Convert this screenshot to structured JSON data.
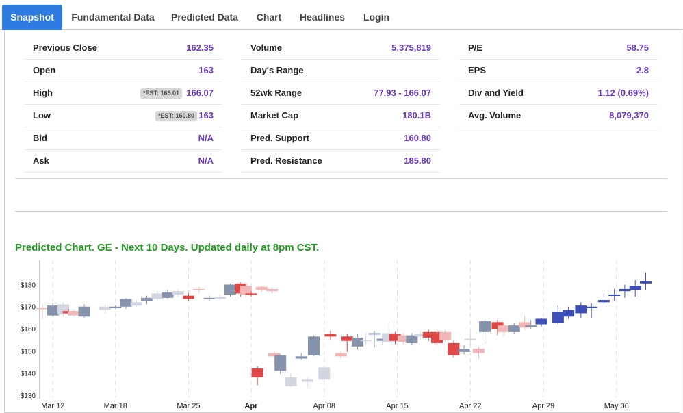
{
  "tabs": [
    "Snapshot",
    "Fundamental Data",
    "Predicted Data",
    "Chart",
    "Headlines",
    "Login"
  ],
  "active_tab": "Snapshot",
  "quote": {
    "col1": [
      {
        "label": "Previous Close",
        "value": "162.35"
      },
      {
        "label": "Open",
        "value": "163"
      },
      {
        "label": "High",
        "value": "166.07",
        "est": "*EST: 165.01"
      },
      {
        "label": "Low",
        "value": "163",
        "est": "*EST: 160.80"
      },
      {
        "label": "Bid",
        "value": "N/A"
      },
      {
        "label": "Ask",
        "value": "N/A"
      }
    ],
    "col2": [
      {
        "label": "Volume",
        "value": "5,375,819"
      },
      {
        "label": "Day's Range",
        "value": ""
      },
      {
        "label": "52wk Range",
        "value": "77.93 - 166.07"
      },
      {
        "label": "Market Cap",
        "value": "180.1B"
      },
      {
        "label": "Pred. Support",
        "value": "160.80"
      },
      {
        "label": "Pred. Resistance",
        "value": "185.80"
      }
    ],
    "col3": [
      {
        "label": "P/E",
        "value": "58.75"
      },
      {
        "label": "EPS",
        "value": "2.8"
      },
      {
        "label": "Div and Yield",
        "value": "1.12 (0.69%)"
      },
      {
        "label": "Avg. Volume",
        "value": "8,079,370"
      }
    ]
  },
  "chart_title": "Predicted Chart. GE - Next 10 Days. Updated daily at 8pm CST.",
  "colors": {
    "accent_tab": "#2d7be0",
    "value_purple": "#6a35c2",
    "title_green": "#1f9a1f",
    "gray_bar": "#8593ad",
    "red_bar": "#e04848",
    "light_gray_bar": "#d3d6e0",
    "light_red_bar": "#f1b7b7",
    "blue_pred": "#3f4fb8"
  },
  "chart_data": {
    "type": "candlestick",
    "title": "Predicted Chart. GE - Next 10 Days. Updated daily at 8pm CST.",
    "ylim": [
      129,
      191
    ],
    "y_ticks": [
      130,
      140,
      150,
      160,
      170,
      180
    ],
    "y_tick_labels": [
      "$130",
      "$140",
      "$150",
      "$160",
      "$170",
      "$180"
    ],
    "x_ticks": [
      {
        "day": 1,
        "label": "Mar 12",
        "bold": false
      },
      {
        "day": 7,
        "label": "Mar 18",
        "bold": false
      },
      {
        "day": 14,
        "label": "Mar 25",
        "bold": false
      },
      {
        "day": 20,
        "label": "Apr",
        "bold": true
      },
      {
        "day": 27,
        "label": "Apr 08",
        "bold": false
      },
      {
        "day": 34,
        "label": "Apr 15",
        "bold": false
      },
      {
        "day": 41,
        "label": "Apr 22",
        "bold": false
      },
      {
        "day": 48,
        "label": "Apr 29",
        "bold": false
      },
      {
        "day": 55,
        "label": "May 06",
        "bold": false
      }
    ],
    "candles": [
      {
        "day": 0,
        "open": 169.5,
        "close": 169,
        "high": 171,
        "low": 164.5,
        "style": "light-red"
      },
      {
        "day": 1,
        "open": 166,
        "close": 170.5,
        "high": 171.5,
        "low": 165.5,
        "style": "gray"
      },
      {
        "day": 2,
        "open": 171,
        "close": 166.5,
        "high": 172,
        "low": 165.5,
        "style": "light-gray"
      },
      {
        "day": 2.5,
        "open": 168,
        "close": 167,
        "high": 169,
        "low": 166,
        "style": "red"
      },
      {
        "day": 3,
        "open": 168,
        "close": 166,
        "high": 168.5,
        "low": 165.5,
        "style": "light-red"
      },
      {
        "day": 4,
        "open": 165.5,
        "close": 170,
        "high": 171,
        "low": 165,
        "style": "gray"
      },
      {
        "day": 6,
        "open": 168.5,
        "close": 170,
        "high": 171,
        "low": 167,
        "style": "light-gray"
      },
      {
        "day": 7,
        "open": 169.5,
        "close": 170,
        "high": 170.5,
        "low": 169,
        "style": "gray"
      },
      {
        "day": 8,
        "open": 170,
        "close": 173.5,
        "high": 174,
        "low": 169,
        "style": "gray"
      },
      {
        "day": 9,
        "open": 170.5,
        "close": 172,
        "high": 173,
        "low": 170,
        "style": "light-gray"
      },
      {
        "day": 10,
        "open": 172.5,
        "close": 174,
        "high": 175,
        "low": 171,
        "style": "gray"
      },
      {
        "day": 11,
        "open": 173.5,
        "close": 176,
        "high": 177,
        "low": 172.5,
        "style": "light-gray"
      },
      {
        "day": 12,
        "open": 174,
        "close": 176.5,
        "high": 177.5,
        "low": 173.5,
        "style": "gray"
      },
      {
        "day": 13,
        "open": 175.5,
        "close": 177,
        "high": 178,
        "low": 174.5,
        "style": "light-gray"
      },
      {
        "day": 14,
        "open": 175,
        "close": 173.5,
        "high": 176,
        "low": 172.5,
        "style": "red"
      },
      {
        "day": 15,
        "open": 177.5,
        "close": 178,
        "high": 179,
        "low": 176,
        "style": "light-red"
      },
      {
        "day": 16,
        "open": 174,
        "close": 173.5,
        "high": 175,
        "low": 172.5,
        "style": "gray"
      },
      {
        "day": 17,
        "open": 173.5,
        "close": 174.5,
        "high": 175.5,
        "low": 173,
        "style": "light-gray"
      },
      {
        "day": 18,
        "open": 175.5,
        "close": 180,
        "high": 180.5,
        "low": 174.5,
        "style": "gray"
      },
      {
        "day": 19,
        "open": 180.5,
        "close": 176,
        "high": 181,
        "low": 174.5,
        "style": "red"
      },
      {
        "day": 19.5,
        "open": 179.5,
        "close": 175.5,
        "high": 180.5,
        "low": 174,
        "style": "light-red"
      },
      {
        "day": 20,
        "open": 176,
        "close": 175.5,
        "high": 177,
        "low": 174.5,
        "style": "red"
      },
      {
        "day": 21,
        "open": 179,
        "close": 177.5,
        "high": 179.5,
        "low": 176.5,
        "style": "light-red"
      },
      {
        "day": 22,
        "open": 178,
        "close": 177,
        "high": 178.5,
        "low": 176,
        "style": "light-red"
      },
      {
        "day": 20.6,
        "open": 142,
        "close": 138,
        "high": 143,
        "low": 134.5,
        "style": "red"
      },
      {
        "day": 22.2,
        "open": 147.5,
        "close": 149,
        "high": 150,
        "low": 144,
        "style": "light-red"
      },
      {
        "day": 22.8,
        "open": 141,
        "close": 148,
        "high": 148.5,
        "low": 139.5,
        "style": "gray"
      },
      {
        "day": 23.8,
        "open": 134,
        "close": 138,
        "high": 140,
        "low": 133.5,
        "style": "light-gray"
      },
      {
        "day": 24.8,
        "open": 146.5,
        "close": 147.5,
        "high": 149,
        "low": 146,
        "style": "gray"
      },
      {
        "day": 25.4,
        "open": 136,
        "close": 137,
        "high": 138,
        "low": 134,
        "style": "light-gray"
      },
      {
        "day": 26.0,
        "open": 148,
        "close": 156.5,
        "high": 157,
        "low": 147.5,
        "style": "gray"
      },
      {
        "day": 27.0,
        "open": 137,
        "close": 142.5,
        "high": 143,
        "low": 136,
        "style": "light-gray"
      },
      {
        "day": 27.6,
        "open": 157.5,
        "close": 156.5,
        "high": 159,
        "low": 155,
        "style": "red"
      },
      {
        "day": 28.6,
        "open": 149,
        "close": 147.5,
        "high": 150,
        "low": 146.5,
        "style": "light-red"
      },
      {
        "day": 29.2,
        "open": 156.5,
        "close": 154.5,
        "high": 157.5,
        "low": 149.5,
        "style": "red"
      },
      {
        "day": 30.2,
        "open": 152,
        "close": 156,
        "high": 157.5,
        "low": 150.5,
        "style": "gray"
      },
      {
        "day": 31.0,
        "open": 154.5,
        "close": 155,
        "high": 158,
        "low": 152.5,
        "style": "light-gray"
      },
      {
        "day": 31.8,
        "open": 157.5,
        "close": 158,
        "high": 159,
        "low": 151.5,
        "style": "gray"
      },
      {
        "day": 32.6,
        "open": 154.5,
        "close": 155.5,
        "high": 158,
        "low": 152.5,
        "style": "gray"
      },
      {
        "day": 33.2,
        "open": 154,
        "close": 158,
        "high": 163,
        "low": 153.5,
        "style": "light-gray"
      },
      {
        "day": 33.8,
        "open": 157.5,
        "close": 154.5,
        "high": 158.5,
        "low": 153,
        "style": "red"
      },
      {
        "day": 34.6,
        "open": 157,
        "close": 154,
        "high": 158,
        "low": 153,
        "style": "light-red"
      },
      {
        "day": 35.4,
        "open": 157,
        "close": 153.5,
        "high": 158,
        "low": 152.5,
        "style": "gray"
      },
      {
        "day": 36.2,
        "open": 157.5,
        "close": 156.5,
        "high": 159,
        "low": 155,
        "style": "light-gray"
      },
      {
        "day": 37.0,
        "open": 158.5,
        "close": 156,
        "high": 159.5,
        "low": 154.5,
        "style": "red"
      },
      {
        "day": 37.8,
        "open": 158.5,
        "close": 153.5,
        "high": 159.5,
        "low": 152.5,
        "style": "red"
      },
      {
        "day": 38.6,
        "open": 158.5,
        "close": 155,
        "high": 159.5,
        "low": 154,
        "style": "light-red"
      },
      {
        "day": 39.4,
        "open": 153.5,
        "close": 148,
        "high": 154.5,
        "low": 147,
        "style": "red"
      },
      {
        "day": 40.4,
        "open": 149.5,
        "close": 151,
        "high": 152.5,
        "low": 148.5,
        "style": "gray"
      },
      {
        "day": 41.0,
        "open": 155,
        "close": 155.5,
        "high": 158.5,
        "low": 152.5,
        "style": "light-gray"
      },
      {
        "day": 41.8,
        "open": 151,
        "close": 149,
        "high": 152,
        "low": 146.5,
        "style": "light-red"
      },
      {
        "day": 42.4,
        "open": 158.5,
        "close": 163.5,
        "high": 164,
        "low": 153,
        "style": "gray"
      },
      {
        "day": 43.6,
        "open": 163,
        "close": 160,
        "high": 164,
        "low": 157,
        "style": "red"
      },
      {
        "day": 44.2,
        "open": 161.5,
        "close": 158.5,
        "high": 162.5,
        "low": 157,
        "style": "light-red"
      },
      {
        "day": 45.2,
        "open": 158.5,
        "close": 161.5,
        "high": 162.5,
        "low": 157.5,
        "style": "gray"
      },
      {
        "day": 46.2,
        "open": 163,
        "close": 160.5,
        "high": 166,
        "low": 159.5,
        "style": "light-red"
      },
      {
        "day": 46.8,
        "open": 161,
        "close": 161.5,
        "high": 164,
        "low": 160,
        "style": "gray"
      },
      {
        "day": 47.8,
        "open": 162,
        "close": 164.5,
        "high": 165,
        "low": 161,
        "style": "blue"
      },
      {
        "day": 49.4,
        "open": 162.5,
        "close": 167.5,
        "high": 170.5,
        "low": 162,
        "style": "blue"
      },
      {
        "day": 50.4,
        "open": 165.5,
        "close": 168.5,
        "high": 170,
        "low": 164.5,
        "style": "blue"
      },
      {
        "day": 51.6,
        "open": 167,
        "close": 170.5,
        "high": 172,
        "low": 165,
        "style": "blue"
      },
      {
        "day": 52.6,
        "open": 169.5,
        "close": 170,
        "high": 171.5,
        "low": 165,
        "style": "blue"
      },
      {
        "day": 53.8,
        "open": 172,
        "close": 173,
        "high": 176,
        "low": 170.5,
        "style": "blue"
      },
      {
        "day": 54.8,
        "open": 175,
        "close": 175.5,
        "high": 178,
        "low": 172.5,
        "style": "blue"
      },
      {
        "day": 55.8,
        "open": 177,
        "close": 178,
        "high": 180,
        "low": 174,
        "style": "blue"
      },
      {
        "day": 56.8,
        "open": 177.5,
        "close": 179.5,
        "high": 182,
        "low": 174.5,
        "style": "blue"
      },
      {
        "day": 57.8,
        "open": 180.5,
        "close": 181.5,
        "high": 185.5,
        "low": 177.5,
        "style": "blue"
      }
    ]
  }
}
